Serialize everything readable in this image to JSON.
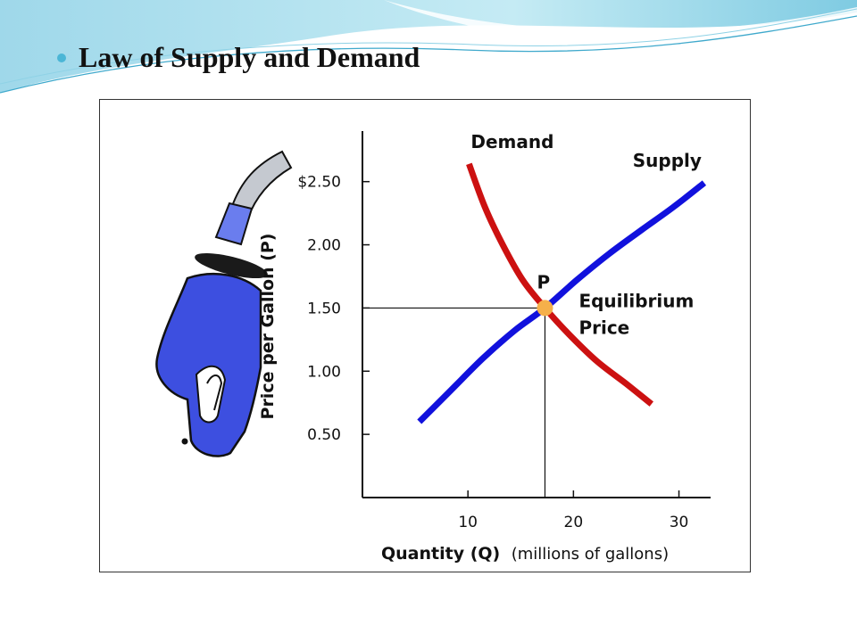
{
  "slide": {
    "title": "Law of Supply and Demand",
    "accent_color": "#4bb6d6"
  },
  "illustration": {
    "icon": "gas-pump-nozzle-icon",
    "color": "#3d4fe0"
  },
  "chart_data": {
    "type": "line",
    "ylabel": "Price per Gallon (P)",
    "xlabel": "Quantity (Q)",
    "xlabel_unit": "(millions of gallons)",
    "x_ticks": [
      {
        "value": 10,
        "label": "10"
      },
      {
        "value": 20,
        "label": "20"
      },
      {
        "value": 30,
        "label": "30"
      }
    ],
    "y_ticks": [
      {
        "value": 0.5,
        "label": "0.50"
      },
      {
        "value": 1.0,
        "label": "1.00"
      },
      {
        "value": 1.5,
        "label": "1.50"
      },
      {
        "value": 2.0,
        "label": "2.00"
      },
      {
        "value": 2.5,
        "label": "$2.50"
      }
    ],
    "xlim": [
      0,
      33
    ],
    "ylim": [
      0,
      2.9
    ],
    "grid": false,
    "series": [
      {
        "name": "Demand",
        "color": "#cc1111",
        "points": [
          [
            10.1,
            2.64
          ],
          [
            11.6,
            2.3
          ],
          [
            13.3,
            2.0
          ],
          [
            15.2,
            1.72
          ],
          [
            17.3,
            1.5
          ],
          [
            19.6,
            1.29
          ],
          [
            22.2,
            1.08
          ],
          [
            25.0,
            0.9
          ],
          [
            27.4,
            0.74
          ]
        ]
      },
      {
        "name": "Supply",
        "color": "#1111dd",
        "points": [
          [
            5.4,
            0.6
          ],
          [
            8.4,
            0.85
          ],
          [
            11.4,
            1.1
          ],
          [
            14.4,
            1.32
          ],
          [
            17.3,
            1.5
          ],
          [
            20.3,
            1.72
          ],
          [
            23.4,
            1.93
          ],
          [
            26.5,
            2.12
          ],
          [
            29.5,
            2.3
          ],
          [
            32.4,
            2.49
          ]
        ]
      }
    ],
    "equilibrium": {
      "label": "P",
      "annotation": [
        "Equilibrium",
        "Price"
      ],
      "x": 17.3,
      "y": 1.5,
      "color": "#f5b04a"
    }
  }
}
